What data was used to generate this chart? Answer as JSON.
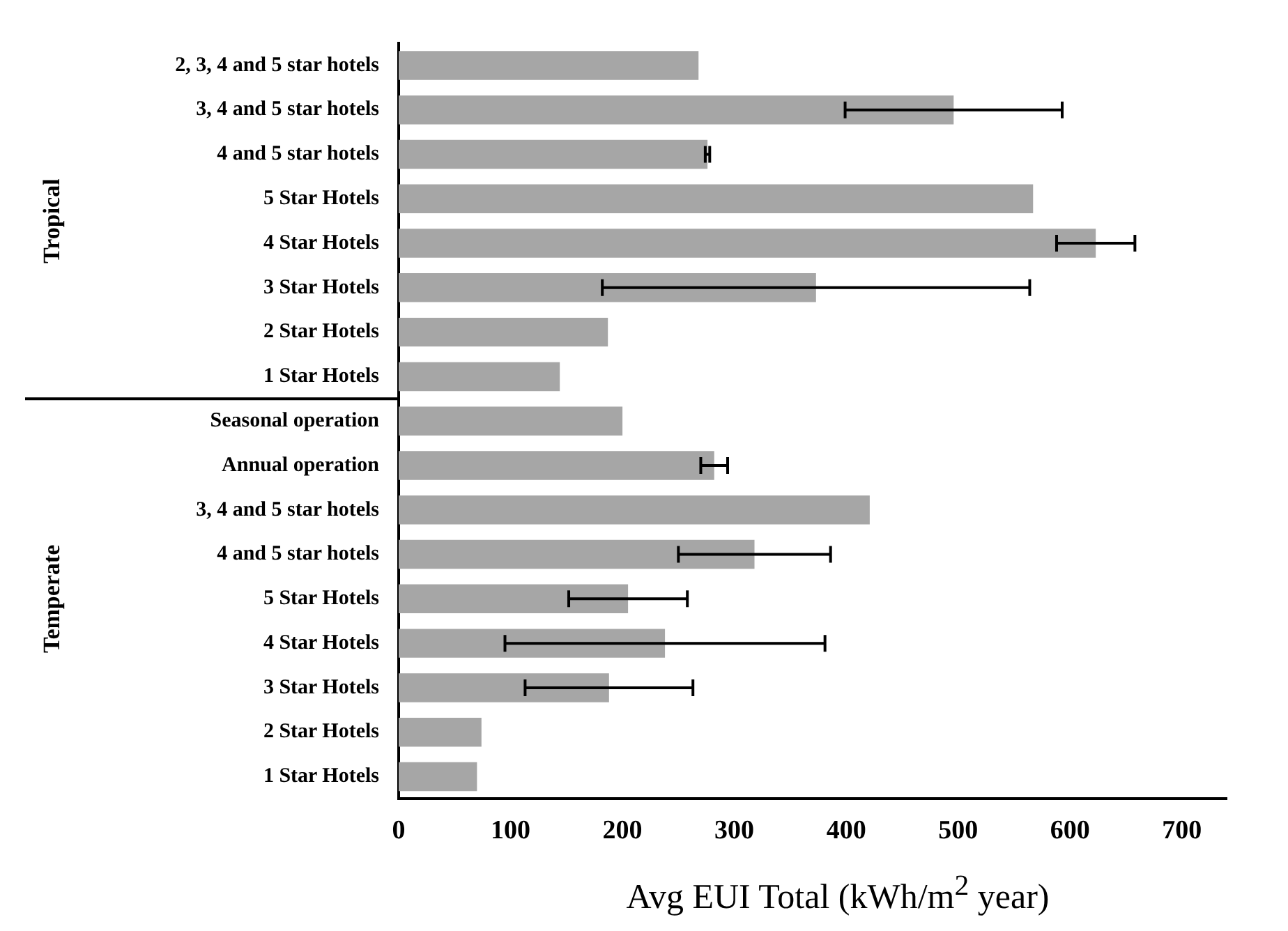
{
  "chart_data": {
    "type": "bar",
    "orientation": "horizontal",
    "xlabel": "Avg EUI Total (kWh/m$^{2}$ year)",
    "categories": [
      "2, 3, 4 and 5 star hotels",
      "3, 4 and 5 star hotels",
      "4 and 5 star hotels",
      "5 Star Hotels",
      "4 Star Hotels",
      "3 Star Hotels",
      "2 Star Hotels",
      "1 Star Hotels",
      "Seasonal operation",
      "Annual operation",
      "3, 4 and 5 star hotels",
      "4 and 5 star hotels",
      "5 Star Hotels",
      "4 Star Hotels",
      "3 Star Hotels",
      "2 Star Hotels",
      "1 Star Hotels"
    ],
    "values": [
      268,
      496,
      276,
      567,
      623,
      373,
      187,
      144,
      200,
      282,
      421,
      318,
      205,
      238,
      188,
      74,
      70
    ],
    "errors": [
      null,
      97,
      2,
      null,
      35,
      191,
      null,
      null,
      null,
      12,
      null,
      68,
      53,
      143,
      75,
      null,
      null
    ],
    "color": "#a6a6a6",
    "xlim": [
      0,
      740
    ],
    "xticks": [
      0,
      100,
      200,
      300,
      400,
      500,
      600,
      700
    ],
    "annotations": [
      "Tropical",
      "Temperate"
    ],
    "grid": false,
    "legend": false
  }
}
